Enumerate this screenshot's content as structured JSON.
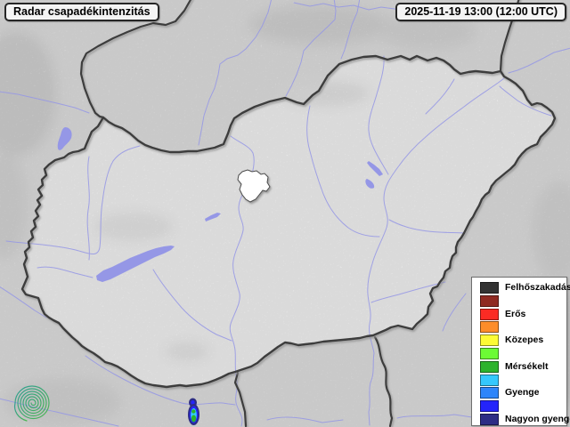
{
  "header": {
    "title": "Radar csapadékintenzitás",
    "timestamp": "2025-11-19 13:00 (12:00 UTC)"
  },
  "legend": {
    "items": [
      {
        "label": "Felhőszakadás",
        "color": "#333333"
      },
      {
        "label": "",
        "color": "#8f2a22"
      },
      {
        "label": "Erős",
        "color": "#fb2b24"
      },
      {
        "label": "",
        "color": "#fd8d2a"
      },
      {
        "label": "Közepes",
        "color": "#fdfb35"
      },
      {
        "label": "",
        "color": "#6cfb35"
      },
      {
        "label": "Mérsékelt",
        "color": "#2db32d"
      },
      {
        "label": "",
        "color": "#35c8fd"
      },
      {
        "label": "Gyenge",
        "color": "#2d85fa"
      },
      {
        "label": "",
        "color": "#2424fb"
      },
      {
        "label": "Nagyon gyenge",
        "color": "#2d2d85"
      }
    ]
  },
  "map": {
    "region": "Hungary",
    "colors": {
      "land_outside": "#e8e8e8",
      "land_inside": "#fcfcfc",
      "water": "#9597e6",
      "border": "#3d3d3d",
      "logo_teal": "#2a9d93",
      "logo_green": "#45b649"
    },
    "radar_echo": {
      "location": "south of the Hungarian border, near Drava-Danube area",
      "levels_present": [
        "Nagyon gyenge",
        "Gyenge",
        "Mérsékelt"
      ]
    }
  }
}
